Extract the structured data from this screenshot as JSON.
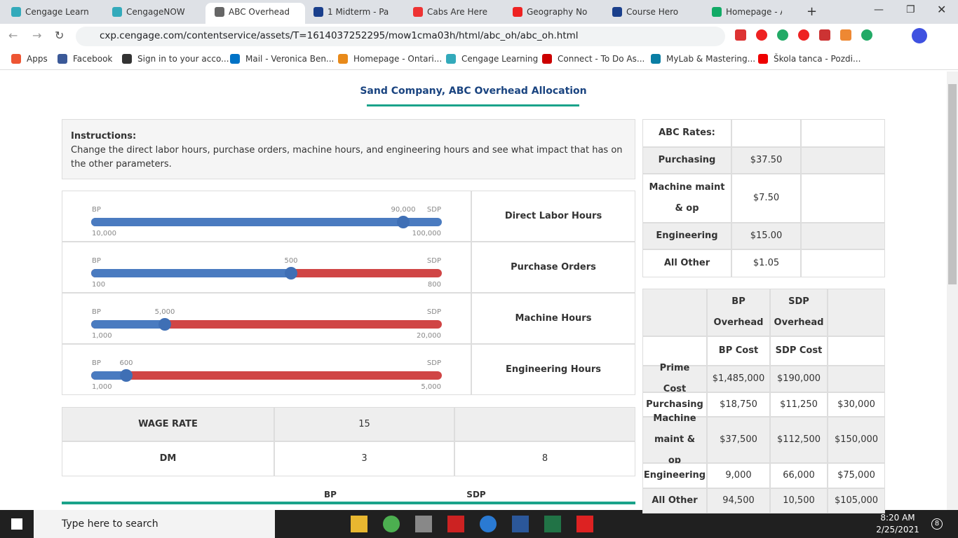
{
  "browser": {
    "tabs": [
      "Cengage Learn",
      "CengageNOW",
      "ABC Overhead",
      "1 Midterm - Pa",
      "Cabs Are Here",
      "Geography No",
      "Course Hero",
      "Homepage - A"
    ],
    "url": "cxp.cengage.com/contentservice/assets/T=1614037252295/mow1cma03h/html/abc_oh/abc_oh.html",
    "bookmarks": [
      "Apps",
      "Facebook",
      "Sign in to your acco...",
      "Mail - Veronica Ben...",
      "Homepage - Ontari...",
      "Cengage Learning",
      "Connect - To Do As...",
      "MyLab & Mastering...",
      "Škola tanca - Pozdi..."
    ]
  },
  "page": {
    "title": "Sand Company, ABC Overhead Allocation",
    "instructions": {
      "label": "Instructions:",
      "text": "Change the direct labor hours, purchase orders, machine hours, and engineering hours and see what impact that has on the other parameters."
    },
    "sliders": [
      {
        "left": "BP",
        "value": "90,000",
        "right": "SDP",
        "min": "10,000",
        "max": "100,000",
        "name": "Direct Labor Hours"
      },
      {
        "left": "BP",
        "value": "500",
        "right": "SDP",
        "min": "100",
        "max": "800",
        "name": "Purchase Orders"
      },
      {
        "left": "BP",
        "value": "5,000",
        "right": "SDP",
        "min": "1,000",
        "max": "20,000",
        "name": "Machine Hours"
      },
      {
        "left": "BP",
        "value": "600",
        "right": "SDP",
        "min": "1,000",
        "max": "5,000",
        "name": "Engineering Hours"
      }
    ],
    "wage_table": {
      "rows": [
        [
          "WAGE RATE",
          "15"
        ],
        [
          "DM",
          "3",
          "8"
        ]
      ]
    },
    "bottom_header": [
      "BP",
      "SDP"
    ],
    "abc_rates": {
      "rows": [
        [
          "ABC Rates:"
        ],
        [
          "Purchasing",
          "$37.50"
        ],
        [
          "Machine maint & op",
          "$7.50"
        ],
        [
          "Engineering",
          "$15.00"
        ],
        [
          "All Other",
          "$1.05"
        ]
      ]
    },
    "overhead": {
      "header": [
        "BP Overhead",
        "SDP Overhead"
      ],
      "subheader": [
        "BP Cost",
        "SDP Cost"
      ],
      "rows": [
        [
          "Prime Cost",
          "$1,485,000",
          "$190,000"
        ],
        [
          "Purchasing",
          "$18,750",
          "$11,250",
          "$30,000"
        ],
        [
          "Machine maint & op",
          "$37,500",
          "$112,500",
          "$150,000"
        ],
        [
          "Engineering",
          "9,000",
          "66,000",
          "$75,000"
        ],
        [
          "All Other",
          "94,500",
          "10,500",
          "$105,000"
        ]
      ]
    }
  },
  "taskbar": {
    "search": "Type here to search",
    "time": "8:20 AM",
    "date": "2/25/2021",
    "notifications": "8"
  }
}
